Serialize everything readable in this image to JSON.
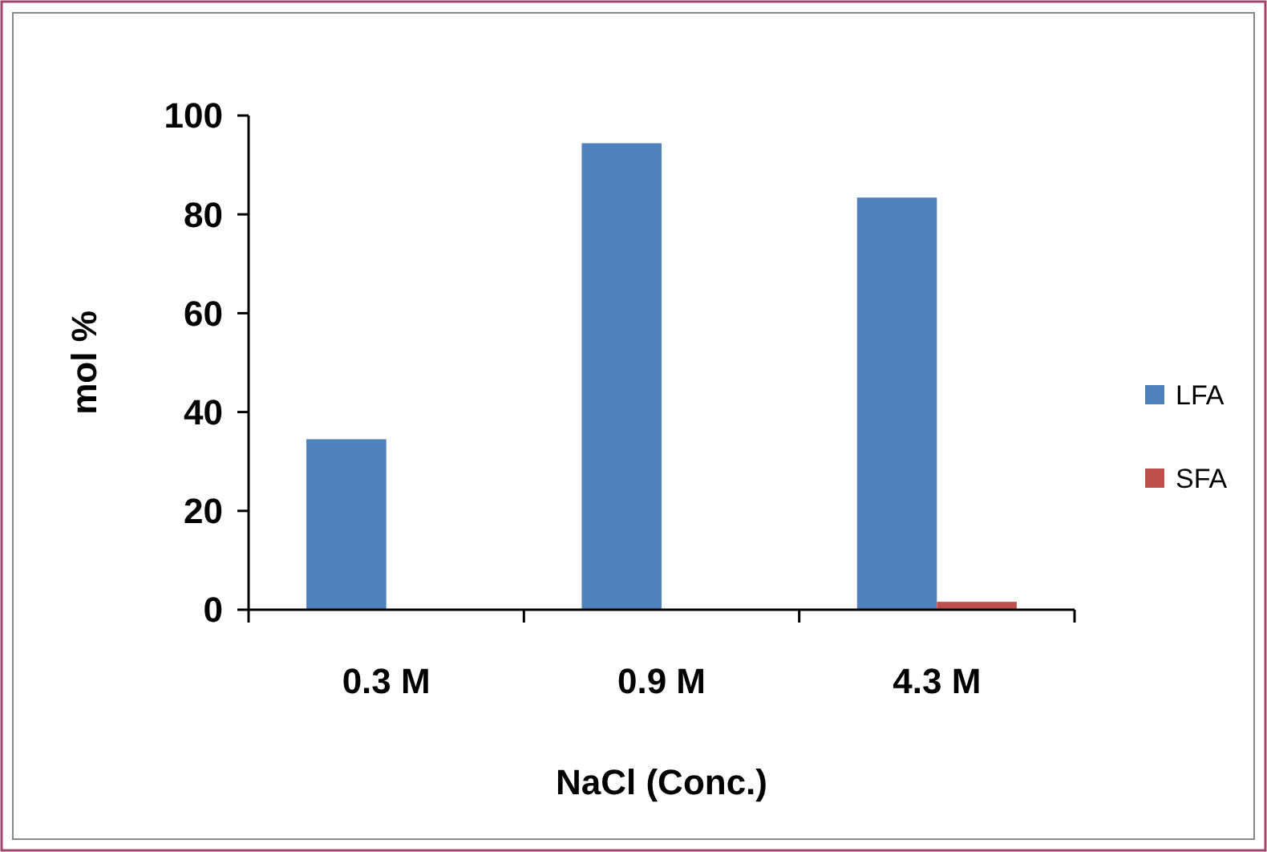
{
  "chart_data": {
    "type": "bar",
    "xlabel": "NaCl (Conc.)",
    "ylabel": "mol %",
    "categories": [
      "0.3 M",
      "0.9 M",
      "4.3 M"
    ],
    "series": [
      {
        "name": "LFA",
        "color": "#4f81bd",
        "values": [
          34.5,
          94.4,
          83.4
        ]
      },
      {
        "name": "SFA",
        "color": "#c0504d",
        "values": [
          0,
          0,
          1.6
        ]
      }
    ],
    "ylim": [
      0,
      100
    ],
    "yticks": [
      0,
      20,
      40,
      60,
      80,
      100
    ],
    "grid": false,
    "legend": "right"
  }
}
